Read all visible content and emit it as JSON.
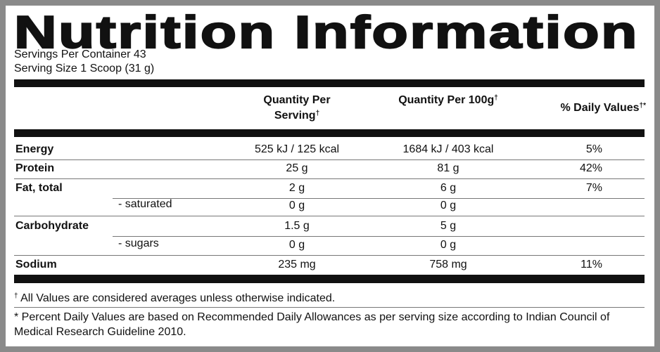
{
  "header": {
    "title": "Nutrition Information",
    "servings": "Servings Per Container 43",
    "serving_size": "Serving Size 1 Scoop (31 g)"
  },
  "table": {
    "columns": [
      {
        "text": "Quantity Per Serving",
        "mark": "†"
      },
      {
        "text": "Quantity Per 100g",
        "mark": "†"
      },
      {
        "text": "% Daily Values",
        "mark": "†*"
      }
    ],
    "rows": [
      {
        "label": "Energy",
        "serving": "525 kJ / 125 kcal",
        "per100g": "1684 kJ / 403 kcal",
        "dv": "5%"
      },
      {
        "label": "Protein",
        "serving": "25 g",
        "per100g": "81 g",
        "dv": "42%"
      },
      {
        "label": "Fat, total",
        "serving": "2 g",
        "per100g": "6 g",
        "dv": "7%"
      },
      {
        "sublabel": "- saturated",
        "serving": "0 g",
        "per100g": "0 g"
      },
      {
        "label": "Carbohydrate",
        "serving": "1.5 g",
        "per100g": "5 g"
      },
      {
        "sublabel": "- sugars",
        "serving": "0 g",
        "per100g": "0 g"
      },
      {
        "label": "Sodium",
        "serving": "235 mg",
        "per100g": "758 mg",
        "dv": "11%"
      }
    ]
  },
  "footnotes": [
    {
      "mark": "†",
      "text": "All Values are considered averages unless otherwise indicated."
    },
    {
      "mark": "*",
      "text": "Percent Daily Values are based on Recommended Daily Allowances as per serving size according to Indian Council of Medical Research Guideline 2010."
    }
  ]
}
